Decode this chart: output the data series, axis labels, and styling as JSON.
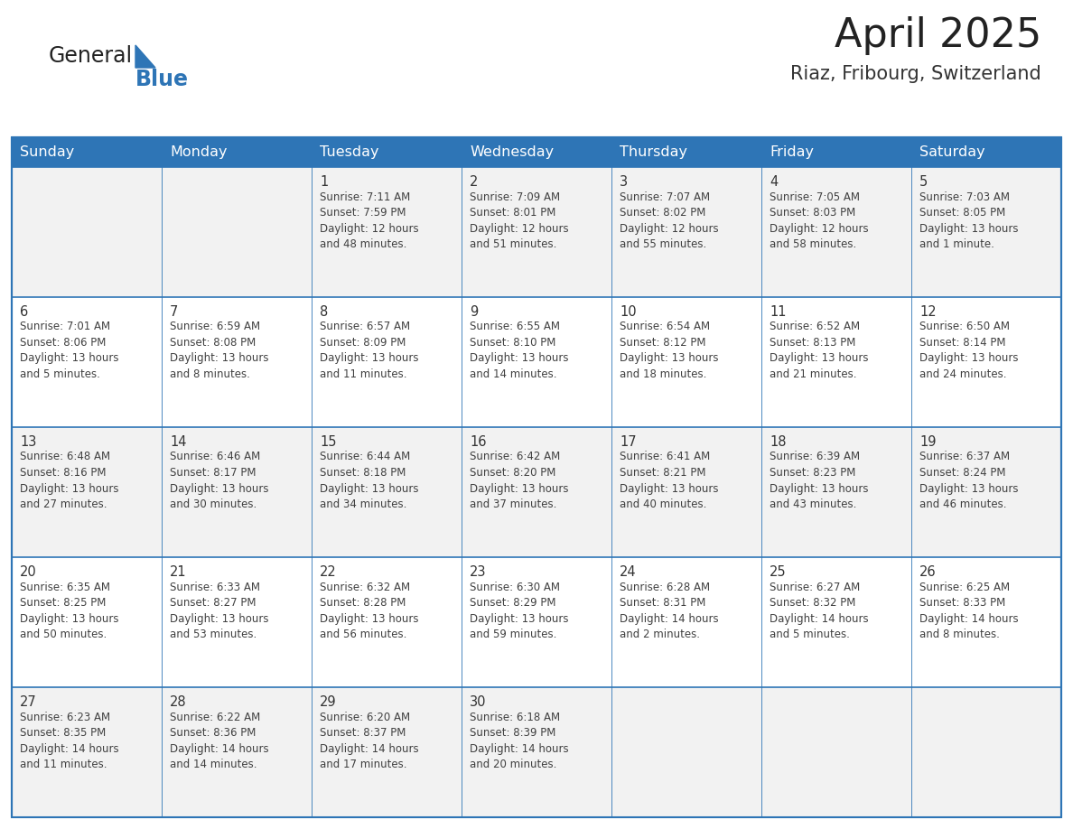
{
  "title": "April 2025",
  "subtitle": "Riaz, Fribourg, Switzerland",
  "days_of_week": [
    "Sunday",
    "Monday",
    "Tuesday",
    "Wednesday",
    "Thursday",
    "Friday",
    "Saturday"
  ],
  "header_bg": "#2E75B6",
  "header_text": "#FFFFFF",
  "row_bg_odd": "#F2F2F2",
  "row_bg_even": "#FFFFFF",
  "cell_border": "#2E75B6",
  "day_number_color": "#333333",
  "text_color": "#404040",
  "title_color": "#222222",
  "subtitle_color": "#333333",
  "calendar_data": [
    [
      null,
      null,
      {
        "day": "1",
        "sunrise": "7:11 AM",
        "sunset": "7:59 PM",
        "daylight_line1": "12 hours",
        "daylight_line2": "and 48 minutes."
      },
      {
        "day": "2",
        "sunrise": "7:09 AM",
        "sunset": "8:01 PM",
        "daylight_line1": "12 hours",
        "daylight_line2": "and 51 minutes."
      },
      {
        "day": "3",
        "sunrise": "7:07 AM",
        "sunset": "8:02 PM",
        "daylight_line1": "12 hours",
        "daylight_line2": "and 55 minutes."
      },
      {
        "day": "4",
        "sunrise": "7:05 AM",
        "sunset": "8:03 PM",
        "daylight_line1": "12 hours",
        "daylight_line2": "and 58 minutes."
      },
      {
        "day": "5",
        "sunrise": "7:03 AM",
        "sunset": "8:05 PM",
        "daylight_line1": "13 hours",
        "daylight_line2": "and 1 minute."
      }
    ],
    [
      {
        "day": "6",
        "sunrise": "7:01 AM",
        "sunset": "8:06 PM",
        "daylight_line1": "13 hours",
        "daylight_line2": "and 5 minutes."
      },
      {
        "day": "7",
        "sunrise": "6:59 AM",
        "sunset": "8:08 PM",
        "daylight_line1": "13 hours",
        "daylight_line2": "and 8 minutes."
      },
      {
        "day": "8",
        "sunrise": "6:57 AM",
        "sunset": "8:09 PM",
        "daylight_line1": "13 hours",
        "daylight_line2": "and 11 minutes."
      },
      {
        "day": "9",
        "sunrise": "6:55 AM",
        "sunset": "8:10 PM",
        "daylight_line1": "13 hours",
        "daylight_line2": "and 14 minutes."
      },
      {
        "day": "10",
        "sunrise": "6:54 AM",
        "sunset": "8:12 PM",
        "daylight_line1": "13 hours",
        "daylight_line2": "and 18 minutes."
      },
      {
        "day": "11",
        "sunrise": "6:52 AM",
        "sunset": "8:13 PM",
        "daylight_line1": "13 hours",
        "daylight_line2": "and 21 minutes."
      },
      {
        "day": "12",
        "sunrise": "6:50 AM",
        "sunset": "8:14 PM",
        "daylight_line1": "13 hours",
        "daylight_line2": "and 24 minutes."
      }
    ],
    [
      {
        "day": "13",
        "sunrise": "6:48 AM",
        "sunset": "8:16 PM",
        "daylight_line1": "13 hours",
        "daylight_line2": "and 27 minutes."
      },
      {
        "day": "14",
        "sunrise": "6:46 AM",
        "sunset": "8:17 PM",
        "daylight_line1": "13 hours",
        "daylight_line2": "and 30 minutes."
      },
      {
        "day": "15",
        "sunrise": "6:44 AM",
        "sunset": "8:18 PM",
        "daylight_line1": "13 hours",
        "daylight_line2": "and 34 minutes."
      },
      {
        "day": "16",
        "sunrise": "6:42 AM",
        "sunset": "8:20 PM",
        "daylight_line1": "13 hours",
        "daylight_line2": "and 37 minutes."
      },
      {
        "day": "17",
        "sunrise": "6:41 AM",
        "sunset": "8:21 PM",
        "daylight_line1": "13 hours",
        "daylight_line2": "and 40 minutes."
      },
      {
        "day": "18",
        "sunrise": "6:39 AM",
        "sunset": "8:23 PM",
        "daylight_line1": "13 hours",
        "daylight_line2": "and 43 minutes."
      },
      {
        "day": "19",
        "sunrise": "6:37 AM",
        "sunset": "8:24 PM",
        "daylight_line1": "13 hours",
        "daylight_line2": "and 46 minutes."
      }
    ],
    [
      {
        "day": "20",
        "sunrise": "6:35 AM",
        "sunset": "8:25 PM",
        "daylight_line1": "13 hours",
        "daylight_line2": "and 50 minutes."
      },
      {
        "day": "21",
        "sunrise": "6:33 AM",
        "sunset": "8:27 PM",
        "daylight_line1": "13 hours",
        "daylight_line2": "and 53 minutes."
      },
      {
        "day": "22",
        "sunrise": "6:32 AM",
        "sunset": "8:28 PM",
        "daylight_line1": "13 hours",
        "daylight_line2": "and 56 minutes."
      },
      {
        "day": "23",
        "sunrise": "6:30 AM",
        "sunset": "8:29 PM",
        "daylight_line1": "13 hours",
        "daylight_line2": "and 59 minutes."
      },
      {
        "day": "24",
        "sunrise": "6:28 AM",
        "sunset": "8:31 PM",
        "daylight_line1": "14 hours",
        "daylight_line2": "and 2 minutes."
      },
      {
        "day": "25",
        "sunrise": "6:27 AM",
        "sunset": "8:32 PM",
        "daylight_line1": "14 hours",
        "daylight_line2": "and 5 minutes."
      },
      {
        "day": "26",
        "sunrise": "6:25 AM",
        "sunset": "8:33 PM",
        "daylight_line1": "14 hours",
        "daylight_line2": "and 8 minutes."
      }
    ],
    [
      {
        "day": "27",
        "sunrise": "6:23 AM",
        "sunset": "8:35 PM",
        "daylight_line1": "14 hours",
        "daylight_line2": "and 11 minutes."
      },
      {
        "day": "28",
        "sunrise": "6:22 AM",
        "sunset": "8:36 PM",
        "daylight_line1": "14 hours",
        "daylight_line2": "and 14 minutes."
      },
      {
        "day": "29",
        "sunrise": "6:20 AM",
        "sunset": "8:37 PM",
        "daylight_line1": "14 hours",
        "daylight_line2": "and 17 minutes."
      },
      {
        "day": "30",
        "sunrise": "6:18 AM",
        "sunset": "8:39 PM",
        "daylight_line1": "14 hours",
        "daylight_line2": "and 20 minutes."
      },
      null,
      null,
      null
    ]
  ],
  "logo_general_color": "#222222",
  "logo_blue_color": "#2E75B6",
  "fig_width": 11.88,
  "fig_height": 9.18,
  "header_font_size": 11.5,
  "day_num_font_size": 10.5,
  "cell_font_size": 8.5
}
